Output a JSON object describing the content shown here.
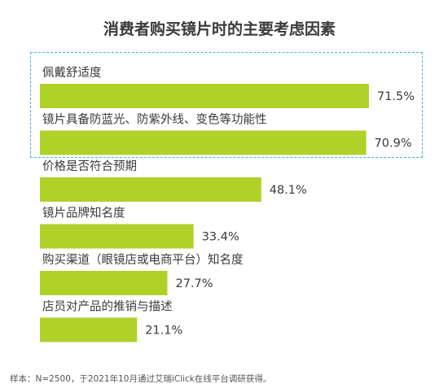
{
  "chart_data": {
    "type": "bar",
    "orientation": "horizontal",
    "title": "消费者购买镜片时的主要考虑因素",
    "categories": [
      "佩戴舒适度",
      "镜片具备防蓝光、防紫外线、变色等功能性",
      "价格是否符合预期",
      "镜片品牌知名度",
      "购买渠道（眼镜店或电商平台）知名度",
      "店员对产品的推销与描述"
    ],
    "values": [
      71.5,
      70.9,
      48.1,
      33.4,
      27.7,
      21.1
    ],
    "value_labels": [
      "71.5%",
      "70.9%",
      "48.1%",
      "33.4%",
      "27.7%",
      "21.1%"
    ],
    "unit": "%",
    "highlighted_categories": [
      "佩戴舒适度",
      "镜片具备防蓝光、防紫外线、变色等功能性"
    ],
    "bar_color": "#b0d12a",
    "highlight_border_color": "#3bb5e0",
    "grid": false,
    "legend": "none"
  },
  "footnote": "样本：N=2500，于2021年10月通过艾瑞iClick在线平台调研获得。"
}
